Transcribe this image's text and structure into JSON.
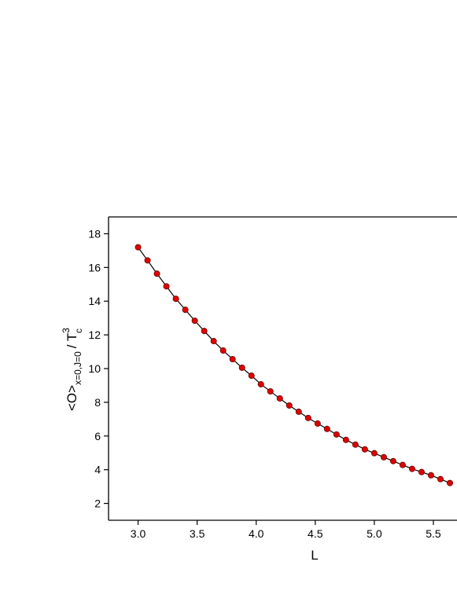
{
  "chart_data": {
    "type": "scatter",
    "xlabel": "L",
    "ylabel": {
      "main": "<O>",
      "sub": "x=0,J=0",
      "sep": "/ T",
      "sup": "3",
      "sub2": "c"
    },
    "xlim": [
      2.75,
      5.7
    ],
    "ylim": [
      1,
      19
    ],
    "xticks": [
      {
        "value": 3,
        "label": "3.0"
      },
      {
        "value": 3.5,
        "label": "3.5"
      },
      {
        "value": 4,
        "label": "4.0"
      },
      {
        "value": 4.5,
        "label": "4.5"
      },
      {
        "value": 5,
        "label": "5.0"
      },
      {
        "value": 5.5,
        "label": "5.5"
      }
    ],
    "yticks": [
      2,
      4,
      6,
      8,
      10,
      12,
      14,
      16,
      18
    ],
    "grid": false,
    "series": [
      {
        "color": "#e00000",
        "x": [
          3.0,
          3.08,
          3.16,
          3.24,
          3.32,
          3.4,
          3.48,
          3.56,
          3.64,
          3.72,
          3.8,
          3.88,
          3.96,
          4.04,
          4.12,
          4.2,
          4.28,
          4.36,
          4.44,
          4.52,
          4.6,
          4.68,
          4.76,
          4.84,
          4.92,
          5.0,
          5.08,
          5.16,
          5.24,
          5.32,
          5.4,
          5.48,
          5.56,
          5.64
        ],
        "values": [
          17.2,
          16.42,
          15.63,
          14.88,
          14.14,
          13.49,
          12.84,
          12.23,
          11.63,
          11.07,
          10.56,
          10.05,
          9.58,
          9.07,
          8.65,
          8.23,
          7.81,
          7.44,
          7.07,
          6.74,
          6.42,
          6.09,
          5.77,
          5.49,
          5.21,
          4.98,
          4.74,
          4.51,
          4.28,
          4.05,
          3.86,
          3.67,
          3.44,
          3.21
        ]
      }
    ]
  }
}
